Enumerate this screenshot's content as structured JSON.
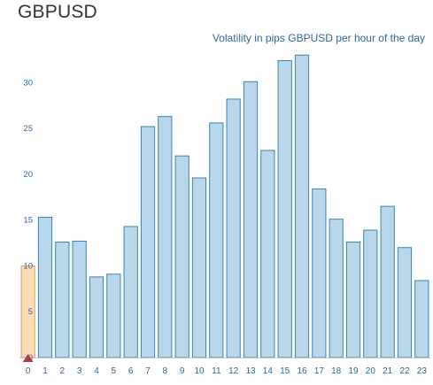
{
  "header": {
    "symbol": "GBPUSD"
  },
  "chart_data": {
    "type": "bar",
    "title": "",
    "subtitle": "Volatility in pips GBPUSD per hour of the day",
    "xlabel": "",
    "ylabel": "",
    "categories": [
      "0",
      "1",
      "2",
      "3",
      "4",
      "5",
      "6",
      "7",
      "8",
      "9",
      "10",
      "11",
      "12",
      "13",
      "14",
      "15",
      "16",
      "17",
      "18",
      "19",
      "20",
      "21",
      "22",
      "23"
    ],
    "values": [
      10,
      15.3,
      12.6,
      12.7,
      8.8,
      9.1,
      14.3,
      25.2,
      26.3,
      22.0,
      19.6,
      25.6,
      28.2,
      30.1,
      22.6,
      32.4,
      33.0,
      18.4,
      15.1,
      12.6,
      13.9,
      16.5,
      12.0,
      8.4
    ],
    "yticks": [
      0,
      5,
      10,
      15,
      20,
      25,
      30
    ],
    "ylim": [
      0,
      33.7
    ],
    "grid": false,
    "highlight_index": 0,
    "colors": {
      "bar_fill": "#b9d7ea",
      "bar_stroke": "#3c83b0",
      "highlight_fill": "#fbdcb4",
      "highlight_stroke": "#d9a066",
      "marker": "#b03a4a",
      "axis": "#cccccc",
      "text": "#336699"
    }
  }
}
